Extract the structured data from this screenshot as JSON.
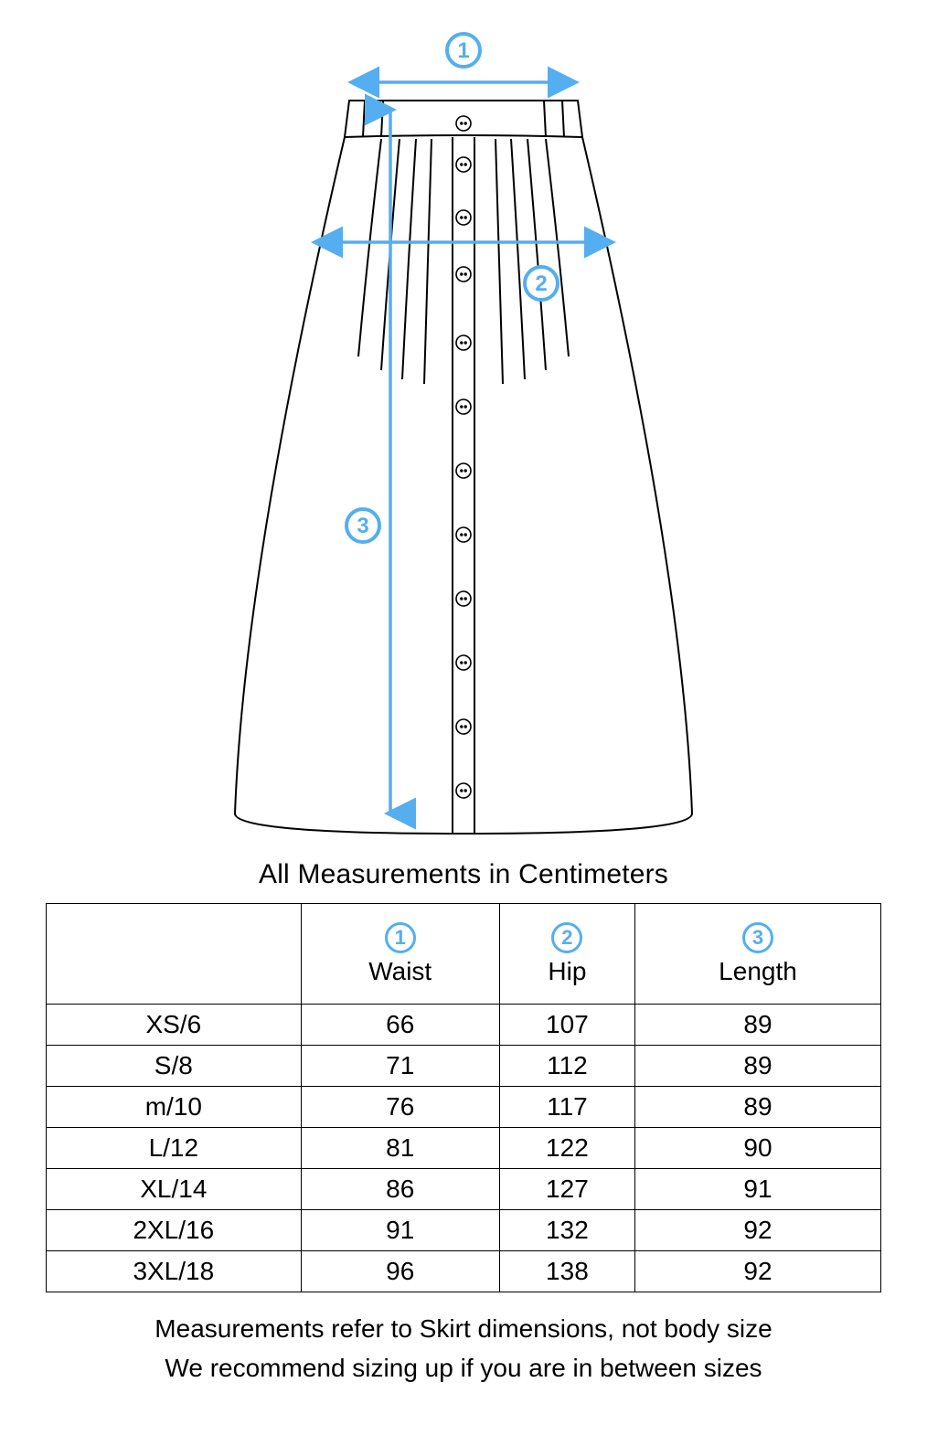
{
  "colors": {
    "accent": "#54aef0",
    "line": "#000000",
    "background": "#ffffff"
  },
  "diagram": {
    "stroke_width_skirt": 2,
    "stroke_width_arrow": 3.5,
    "badges": [
      {
        "id": "1",
        "label": "1"
      },
      {
        "id": "2",
        "label": "2"
      },
      {
        "id": "3",
        "label": "3"
      }
    ]
  },
  "title": "All Measurements in Centimeters",
  "table": {
    "columns": [
      {
        "badge": "1",
        "label": "Waist"
      },
      {
        "badge": "2",
        "label": "Hip"
      },
      {
        "badge": "3",
        "label": "Length"
      }
    ],
    "rows": [
      {
        "size": "XS/6",
        "waist": "66",
        "hip": "107",
        "length": "89"
      },
      {
        "size": "S/8",
        "waist": "71",
        "hip": "112",
        "length": "89"
      },
      {
        "size": "m/10",
        "waist": "76",
        "hip": "117",
        "length": "89"
      },
      {
        "size": "L/12",
        "waist": "81",
        "hip": "122",
        "length": "90"
      },
      {
        "size": "XL/14",
        "waist": "86",
        "hip": "127",
        "length": "91"
      },
      {
        "size": "2XL/16",
        "waist": "91",
        "hip": "132",
        "length": "92"
      },
      {
        "size": "3XL/18",
        "waist": "96",
        "hip": "138",
        "length": "92"
      }
    ]
  },
  "footnotes": [
    "Measurements refer to Skirt dimensions, not body size",
    "We recommend sizing up if you are in between sizes"
  ]
}
